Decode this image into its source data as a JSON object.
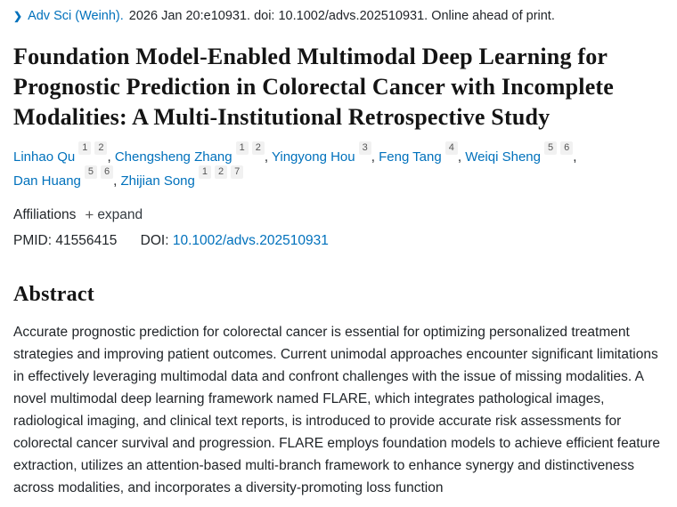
{
  "colors": {
    "link_blue": "#0071bc",
    "badge_bg": "#f1f1f1",
    "badge_text": "#555555",
    "body_text": "#212529",
    "title_text": "#141414"
  },
  "citation": {
    "journal": "Adv Sci (Weinh).",
    "rest": "2026 Jan 20:e10931. doi: 10.1002/advs.202510931. Online ahead of print.",
    "chevron_icon": "chevron-right"
  },
  "title": "Foundation Model-Enabled Multimodal Deep Learning for Prognostic Prediction in Colorectal Cancer with Incomplete Modalities: A Multi-Institutional Retrospective Study",
  "authors": [
    {
      "name": "Linhao Qu",
      "affiliations": [
        "1",
        "2"
      ]
    },
    {
      "name": "Chengsheng Zhang",
      "affiliations": [
        "1",
        "2"
      ]
    },
    {
      "name": "Yingyong Hou",
      "affiliations": [
        "3"
      ]
    },
    {
      "name": "Feng Tang",
      "affiliations": [
        "4"
      ]
    },
    {
      "name": "Weiqi Sheng",
      "affiliations": [
        "5",
        "6"
      ]
    },
    {
      "name": "Dan Huang",
      "affiliations": [
        "5",
        "6"
      ]
    },
    {
      "name": "Zhijian Song",
      "affiliations": [
        "1",
        "2",
        "7"
      ]
    }
  ],
  "affiliations_label": "Affiliations",
  "expand": {
    "plus_icon": "+",
    "label": "expand"
  },
  "ids": {
    "pmid_label": "PMID:",
    "pmid": "41556415",
    "doi_label": "DOI:",
    "doi": "10.1002/advs.202510931"
  },
  "abstract": {
    "heading": "Abstract",
    "text": "Accurate prognostic prediction for colorectal cancer is essential for optimizing personalized treatment strategies and improving patient outcomes. Current unimodal approaches encounter significant limitations in effectively leveraging multimodal data and confront challenges with the issue of missing modalities. A novel multimodal deep learning framework named FLARE, which integrates pathological images, radiological imaging, and clinical text reports, is introduced to provide accurate risk assessments for colorectal cancer survival and progression. FLARE employs foundation models to achieve efficient feature extraction, utilizes an attention-based multi-branch framework to enhance synergy and distinctiveness across modalities, and incorporates a diversity-promoting loss function"
  }
}
